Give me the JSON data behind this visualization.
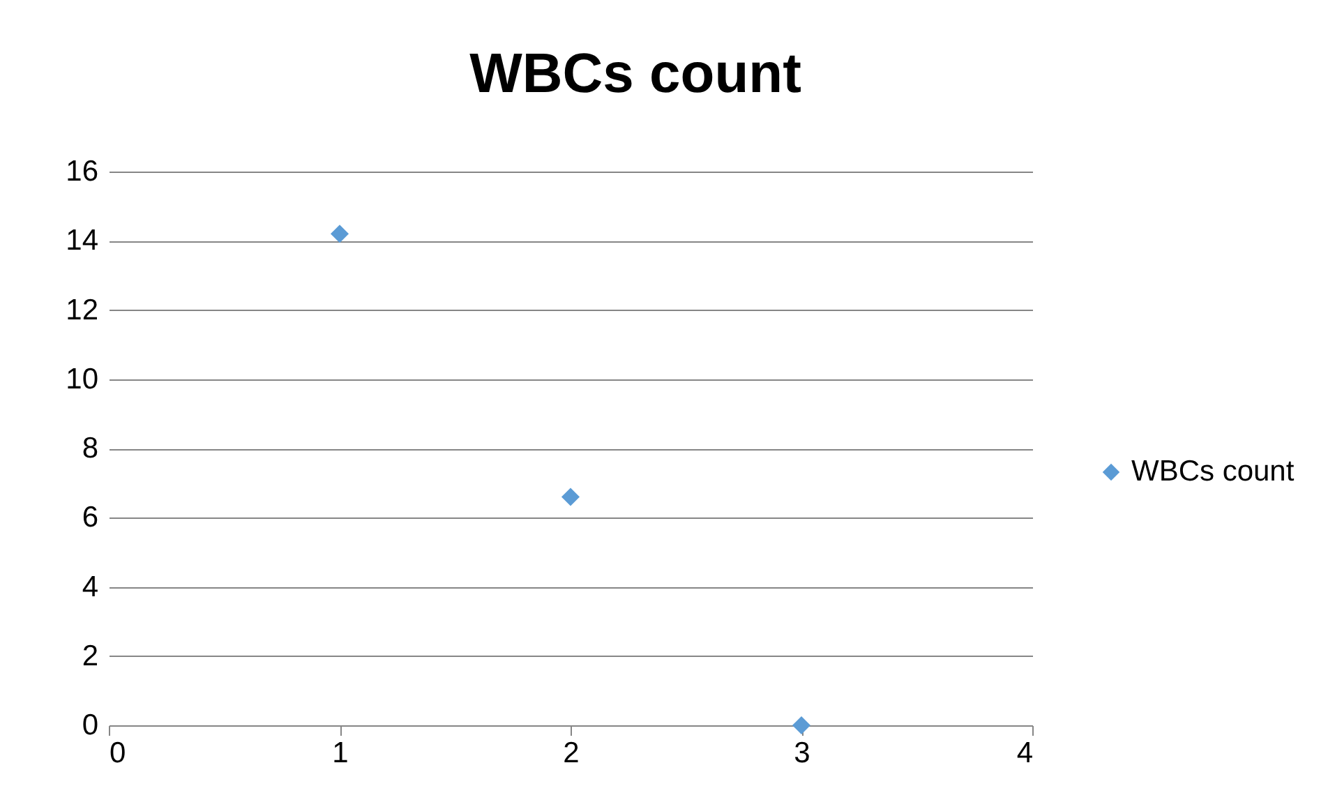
{
  "chart_data": {
    "type": "scatter",
    "title": "WBCs count",
    "x": [
      1,
      2,
      3
    ],
    "series": [
      {
        "name": "WBCs count",
        "color": "#5b9bd5",
        "values": [
          14.2,
          6.6,
          0
        ]
      }
    ],
    "xlim": [
      0,
      4
    ],
    "xticks": [
      0,
      1,
      2,
      3,
      4
    ],
    "ylim": [
      0,
      16
    ],
    "yticks": [
      0,
      2,
      4,
      6,
      8,
      10,
      12,
      14,
      16
    ],
    "grid": "y",
    "legend": "right",
    "marker": "diamond"
  }
}
